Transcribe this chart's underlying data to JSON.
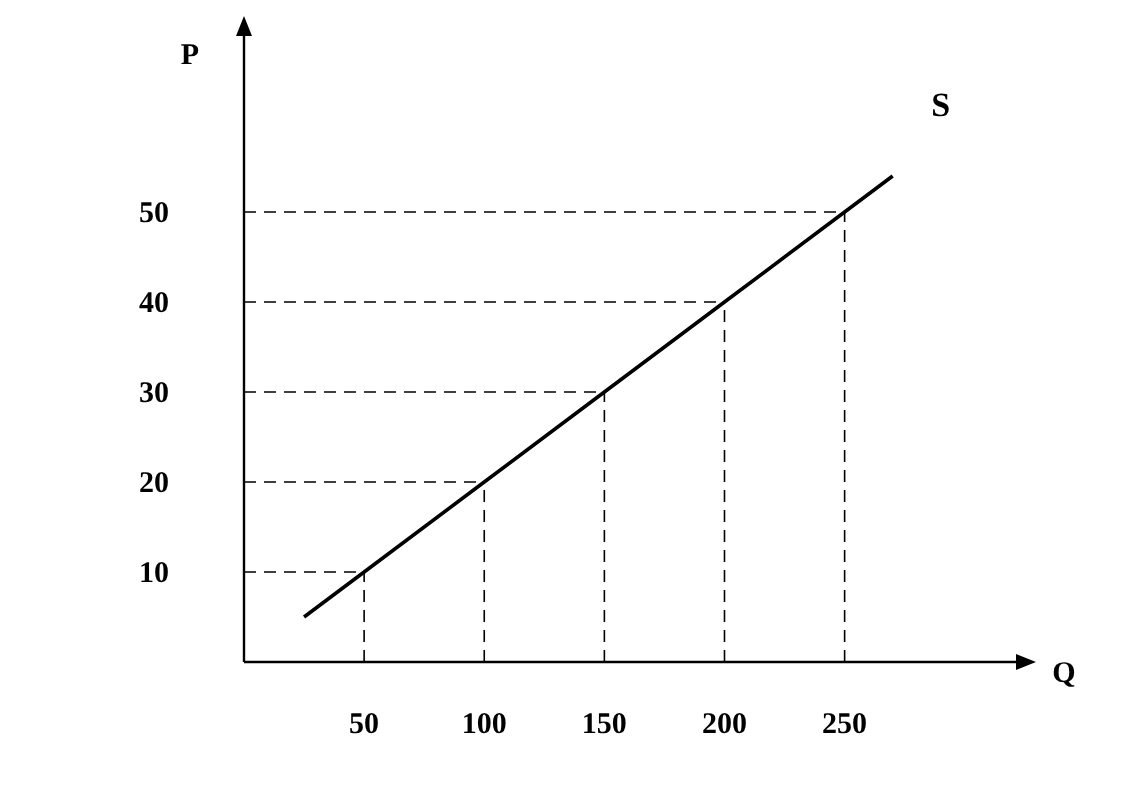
{
  "chart_data": {
    "type": "line",
    "xlabel": "Q",
    "ylabel": "P",
    "x": [
      25,
      50,
      100,
      150,
      200,
      250,
      270
    ],
    "series": [
      {
        "name": "S",
        "color": "#000000",
        "values": [
          5,
          10,
          20,
          30,
          40,
          50,
          54
        ]
      }
    ],
    "xlim": [
      0,
      323
    ],
    "ylim": [
      0,
      70
    ],
    "xticks": [
      50,
      100,
      150,
      200,
      250
    ],
    "yticks": [
      10,
      20,
      30,
      40,
      50
    ],
    "ref_lines": [
      {
        "axis": "x",
        "value": 50,
        "line_style": "dashed"
      },
      {
        "axis": "x",
        "value": 100,
        "line_style": "dashed"
      },
      {
        "axis": "x",
        "value": 150,
        "line_style": "dashed"
      },
      {
        "axis": "x",
        "value": 200,
        "line_style": "dashed"
      },
      {
        "axis": "x",
        "value": 250,
        "line_style": "dashed"
      },
      {
        "axis": "y",
        "value": 10,
        "line_style": "dashed"
      },
      {
        "axis": "y",
        "value": 20,
        "line_style": "dashed"
      },
      {
        "axis": "y",
        "value": 30,
        "line_style": "dashed"
      },
      {
        "axis": "y",
        "value": 40,
        "line_style": "dashed"
      },
      {
        "axis": "y",
        "value": 50,
        "line_style": "dashed"
      }
    ],
    "marker": "none",
    "line_style": "solid",
    "grid": false,
    "legend": false
  }
}
